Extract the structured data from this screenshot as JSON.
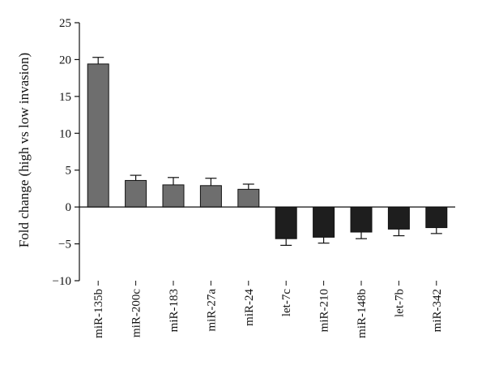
{
  "chart_data": {
    "type": "bar",
    "title": "",
    "xlabel": "",
    "ylabel": "Fold change (high vs low invasion)",
    "ylim": [
      -10,
      25
    ],
    "yticks": [
      25,
      20,
      15,
      10,
      5,
      0,
      -5,
      -10
    ],
    "grid": false,
    "categories": [
      "miR-135b",
      "miR-200c",
      "miR-183",
      "miR-27a",
      "miR-24",
      "let-7c",
      "miR-210",
      "miR-148b",
      "let-7b",
      "miR-342"
    ],
    "values": [
      19.4,
      3.6,
      3.0,
      2.9,
      2.4,
      -4.3,
      -4.1,
      -3.4,
      -3.0,
      -2.8
    ],
    "errors": [
      0.9,
      0.7,
      1.0,
      1.0,
      0.7,
      0.9,
      0.8,
      0.9,
      0.9,
      0.8
    ],
    "colors": [
      "#6e6e6e",
      "#6e6e6e",
      "#6e6e6e",
      "#6e6e6e",
      "#6e6e6e",
      "#1e1e1e",
      "#1e1e1e",
      "#1e1e1e",
      "#1e1e1e",
      "#1e1e1e"
    ]
  }
}
